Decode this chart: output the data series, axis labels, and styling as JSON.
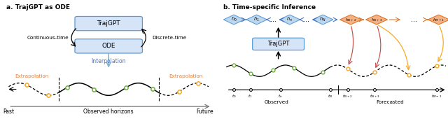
{
  "panel_a_title": "a. TrajGPT as ODE",
  "panel_b_title": "b. Time-specific Inference",
  "box_trajgpt_text": "TrajGPT",
  "box_ode_text": "ODE",
  "continuous_time_text": "Continuous-time",
  "discrete_time_text": "Discrete-time",
  "interpolation_text": "Interpolation",
  "extrapolation_left_text": "Extrapolation",
  "extrapolation_right_text": "Extrapolation",
  "past_text": "Past",
  "observed_horizons_text": "Observed horizons",
  "future_text": "Future",
  "observed_text": "Observed",
  "forecasted_text": "Forecasted",
  "box_color": "#d6e4f7",
  "box_edge_color": "#5b9bd5",
  "orange_color": "#f5a623",
  "green_color": "#70ad47",
  "red_color": "#c0504d",
  "blue_arrow_color": "#4472c4",
  "diamond_blue_fc": "#bdd7ee",
  "diamond_blue_ec": "#5b9bd5",
  "diamond_orange_fc": "#f4b183",
  "diamond_orange_ec": "#e07020",
  "text_orange": "#ed7d31",
  "text_blue_interp": "#4472c4",
  "axis_color": "#555555"
}
